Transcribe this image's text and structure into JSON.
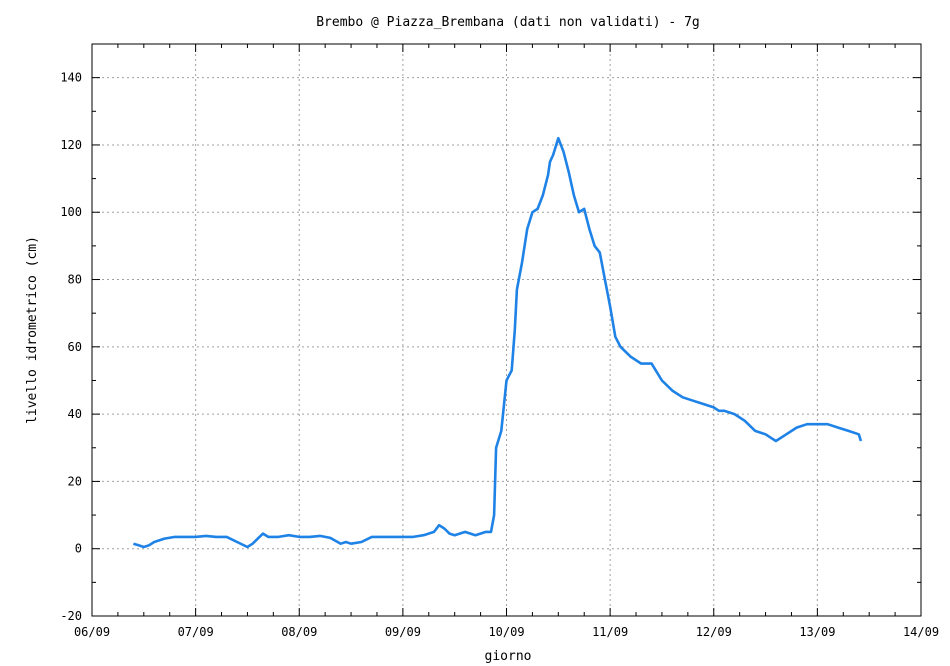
{
  "chart_data": {
    "type": "line",
    "title": "Brembo @ Piazza_Brembana (dati non validati) - 7g",
    "xlabel": "giorno",
    "ylabel": "livello idrometrico (cm)",
    "x_range": [
      "06/09",
      "14/09"
    ],
    "ylim": [
      -20,
      150
    ],
    "x_ticks": [
      "06/09",
      "07/09",
      "08/09",
      "09/09",
      "10/09",
      "11/09",
      "12/09",
      "13/09",
      "14/09"
    ],
    "y_ticks": [
      -20,
      0,
      20,
      40,
      60,
      80,
      100,
      120,
      140
    ],
    "grid": true,
    "legend": "none",
    "series": [
      {
        "color": "#1e82e6",
        "x_unit": "days after 06/09 00:00",
        "x": [
          0.4,
          0.45,
          0.5,
          0.55,
          0.6,
          0.7,
          0.8,
          0.9,
          1.0,
          1.1,
          1.2,
          1.3,
          1.4,
          1.5,
          1.55,
          1.6,
          1.65,
          1.7,
          1.8,
          1.9,
          2.0,
          2.1,
          2.2,
          2.3,
          2.4,
          2.45,
          2.5,
          2.6,
          2.7,
          2.8,
          2.9,
          3.0,
          3.1,
          3.2,
          3.3,
          3.35,
          3.4,
          3.45,
          3.5,
          3.6,
          3.7,
          3.8,
          3.85,
          3.88,
          3.9,
          3.95,
          4.0,
          4.05,
          4.08,
          4.1,
          4.15,
          4.2,
          4.25,
          4.3,
          4.35,
          4.4,
          4.42,
          4.45,
          4.5,
          4.55,
          4.6,
          4.65,
          4.7,
          4.75,
          4.8,
          4.85,
          4.9,
          4.95,
          5.0,
          5.05,
          5.1,
          5.2,
          5.3,
          5.4,
          5.5,
          5.6,
          5.7,
          5.8,
          5.9,
          6.0,
          6.05,
          6.1,
          6.2,
          6.3,
          6.4,
          6.5,
          6.55,
          6.6,
          6.7,
          6.8,
          6.9,
          7.0,
          7.1,
          7.2,
          7.3,
          7.4,
          7.42
        ],
        "values": [
          1.5,
          1,
          0.5,
          1,
          2,
          3,
          3.5,
          3.5,
          3.5,
          3.8,
          3.5,
          3.5,
          2,
          0.5,
          1.5,
          3,
          4.5,
          3.5,
          3.5,
          4,
          3.5,
          3.5,
          3.8,
          3.2,
          1.5,
          2,
          1.5,
          2,
          3.5,
          3.5,
          3.5,
          3.5,
          3.5,
          4,
          5,
          7,
          6,
          4.5,
          4,
          5,
          4,
          5,
          5,
          10,
          30,
          35,
          50,
          53,
          65,
          77,
          85,
          95,
          100,
          101,
          105,
          111,
          115,
          117,
          122,
          118,
          112,
          105,
          100,
          101,
          95,
          90,
          88,
          80,
          72,
          63,
          60,
          57,
          55,
          55,
          50,
          47,
          45,
          44,
          43,
          42,
          41,
          41,
          40,
          38,
          35,
          34,
          33,
          32,
          34,
          36,
          37,
          37,
          37,
          36,
          35,
          34,
          32
        ]
      }
    ]
  }
}
